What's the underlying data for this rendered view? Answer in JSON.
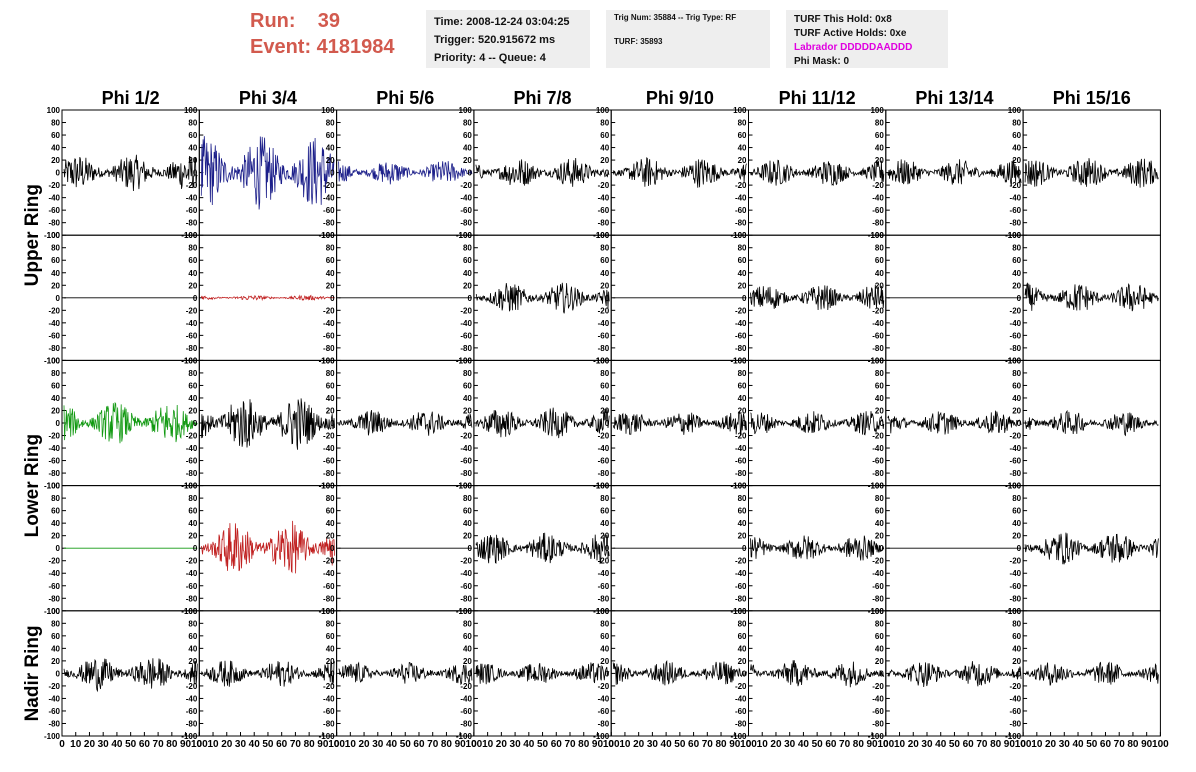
{
  "run_info": {
    "run_line": "Run:    39",
    "event_line": "Event: 4181984"
  },
  "time_box": {
    "time": "Time: 2008-12-24 03:04:25",
    "trigger": "Trigger: 520.915672 ms",
    "priority": "Priority: 4 -- Queue: 4"
  },
  "trig_box": {
    "trig": "Trig Num: 35884 -- Trig Type: RF",
    "turf": "TURF: 35893"
  },
  "turf_box": {
    "this_hold": "TURF This Hold: 0x8",
    "active_holds": "TURF Active Holds: 0xe",
    "labrador": "Labrador DDDDDAADDD",
    "phi_mask": "Phi Mask: 0",
    "labrador_color": "#e000e0"
  },
  "columns": [
    "Phi 1/2",
    "Phi 3/4",
    "Phi 5/6",
    "Phi 7/8",
    "Phi 9/10",
    "Phi 11/12",
    "Phi 13/14",
    "Phi 15/16"
  ],
  "row_labels": [
    "Upper Ring",
    "Lower Ring",
    "Nadir Ring"
  ],
  "y_ticks": [
    "100",
    "80",
    "60",
    "40",
    "20",
    "0",
    "-20",
    "-40",
    "-60",
    "-80"
  ],
  "y_bottom_label": "-100",
  "x_ticks": [
    "0",
    "10",
    "20",
    "30",
    "40",
    "50",
    "60",
    "70",
    "80",
    "90",
    "100"
  ],
  "panels": [
    [
      {
        "c": "#000000",
        "a": 30
      },
      {
        "c": "#1c1f8a",
        "a": 60
      },
      {
        "c": "#1c1f8a",
        "a": 20
      },
      {
        "c": "#000000",
        "a": 25
      },
      {
        "c": "#000000",
        "a": 25
      },
      {
        "c": "#000000",
        "a": 22
      },
      {
        "c": "#000000",
        "a": 22
      },
      {
        "c": "#000000",
        "a": 25
      }
    ],
    [
      {
        "c": "#000000",
        "a": 0
      },
      {
        "c": "#c02020",
        "a": 4
      },
      {
        "c": "#000000",
        "a": 0
      },
      {
        "c": "#000000",
        "a": 25
      },
      {
        "c": "#000000",
        "a": 0
      },
      {
        "c": "#000000",
        "a": 22
      },
      {
        "c": "#000000",
        "a": 0
      },
      {
        "c": "#000000",
        "a": 25
      }
    ],
    [
      {
        "c": "#119911",
        "a": 35
      },
      {
        "c": "#000000",
        "a": 45
      },
      {
        "c": "#000000",
        "a": 22
      },
      {
        "c": "#000000",
        "a": 25
      },
      {
        "c": "#000000",
        "a": 20
      },
      {
        "c": "#000000",
        "a": 20
      },
      {
        "c": "#000000",
        "a": 20
      },
      {
        "c": "#000000",
        "a": 20
      }
    ],
    [
      {
        "c": "#119911",
        "a": 0
      },
      {
        "c": "#c02020",
        "a": 45
      },
      {
        "c": "#000000",
        "a": 0
      },
      {
        "c": "#000000",
        "a": 25
      },
      {
        "c": "#000000",
        "a": 0
      },
      {
        "c": "#000000",
        "a": 22
      },
      {
        "c": "#000000",
        "a": 0
      },
      {
        "c": "#000000",
        "a": 28
      }
    ],
    [
      {
        "c": "#000000",
        "a": 28
      },
      {
        "c": "#000000",
        "a": 22
      },
      {
        "c": "#000000",
        "a": 18
      },
      {
        "c": "#000000",
        "a": 18
      },
      {
        "c": "#000000",
        "a": 20
      },
      {
        "c": "#000000",
        "a": 22
      },
      {
        "c": "#000000",
        "a": 22
      },
      {
        "c": "#000000",
        "a": 20
      }
    ]
  ]
}
